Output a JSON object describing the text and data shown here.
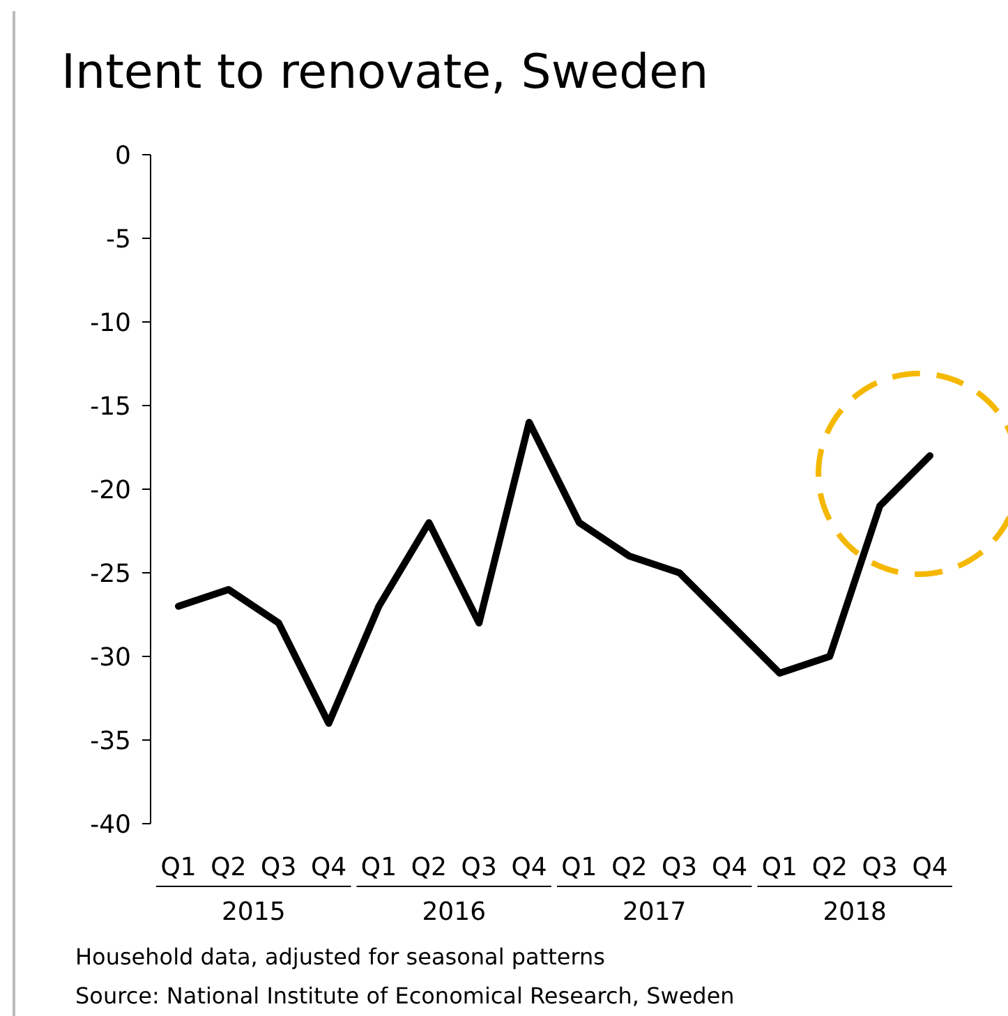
{
  "chart_data": {
    "type": "line",
    "title": "Intent to renovate, Sweden",
    "categories": [
      "Q1",
      "Q2",
      "Q3",
      "Q4",
      "Q1",
      "Q2",
      "Q3",
      "Q4",
      "Q1",
      "Q2",
      "Q3",
      "Q4",
      "Q1",
      "Q2",
      "Q3",
      "Q4"
    ],
    "series": [
      {
        "color": "#000000",
        "values": [
          -27,
          -26,
          -28,
          -34,
          -27,
          -22,
          -28,
          -16,
          -22,
          -24,
          -25,
          -28,
          -31,
          -30,
          -21,
          -18
        ]
      }
    ],
    "ylim": [
      -40,
      0
    ],
    "yticks": [
      -40,
      -35,
      -30,
      -25,
      -20,
      -15,
      -10,
      -5,
      0
    ],
    "grid": false,
    "marker": "none",
    "line_style": "solid",
    "annotations": [
      "2015",
      "2016",
      "2017",
      "2018",
      "Household data, adjusted for seasonal patterns",
      "Source: National Institute of Economical Research, Sweden"
    ]
  }
}
